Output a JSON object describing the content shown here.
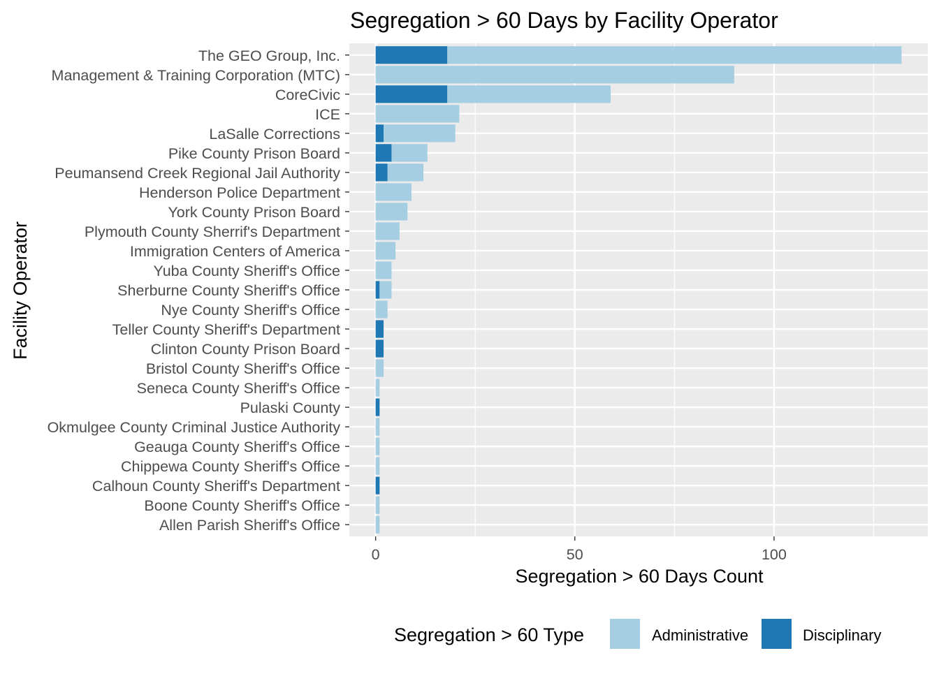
{
  "chart_data": {
    "type": "bar",
    "orientation": "horizontal",
    "stacked": true,
    "title": "Segregation > 60 Days by Facility Operator",
    "xlabel": "Segregation > 60 Days Count",
    "ylabel": "Facility Operator",
    "xlim": [
      -6.6,
      138.6
    ],
    "x_ticks": [
      0,
      50,
      100
    ],
    "grid": true,
    "legend": {
      "title": "Segregation > 60 Type",
      "position": "bottom",
      "entries": [
        "Administrative",
        "Disciplinary"
      ]
    },
    "categories": [
      "The GEO Group, Inc.",
      "Management & Training Corporation (MTC)",
      "CoreCivic",
      "ICE",
      "LaSalle Corrections",
      "Pike County Prison Board",
      "Peumansend Creek Regional Jail Authority",
      "Henderson Police Department",
      "York County Prison Board",
      "Plymouth County Sherrif's Department",
      "Immigration Centers of America",
      "Yuba County Sheriff's Office",
      "Sherburne County Sheriff's Office",
      "Nye County Sheriff's Office",
      "Teller County Sheriff's Department",
      "Clinton County Prison Board",
      "Bristol County Sheriff's Office",
      "Seneca County Sheriff's Office",
      "Pulaski County",
      "Okmulgee County Criminal Justice Authority",
      "Geauga County Sheriff's Office",
      "Chippewa County Sheriff's Office",
      "Calhoun County Sheriff's Department",
      "Boone County Sheriff's Office",
      "Allen Parish Sheriff's Office"
    ],
    "series": [
      {
        "name": "Disciplinary",
        "color": "#1F78B4",
        "values": [
          18,
          0,
          18,
          0,
          2,
          4,
          3,
          0,
          0,
          0,
          0,
          0,
          1,
          0,
          2,
          2,
          0,
          0,
          1,
          0,
          0,
          0,
          1,
          0,
          0
        ]
      },
      {
        "name": "Administrative",
        "color": "#A6CEE3",
        "values": [
          114,
          90,
          41,
          21,
          18,
          9,
          9,
          9,
          8,
          6,
          5,
          4,
          3,
          3,
          0,
          0,
          2,
          1,
          0,
          1,
          1,
          1,
          0,
          1,
          1
        ]
      }
    ],
    "colors": {
      "panel": "#EBEBEB",
      "grid_major": "#FFFFFF",
      "axis_text": "#4D4D4D",
      "tick": "#333333"
    }
  }
}
